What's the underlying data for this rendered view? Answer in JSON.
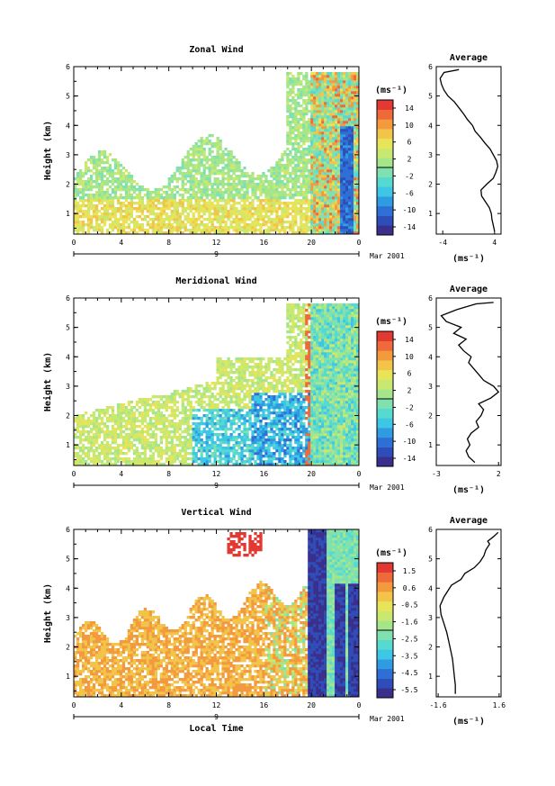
{
  "shared": {
    "x_ticks": [
      "0",
      "4",
      "8",
      "12",
      "16",
      "20",
      "0"
    ],
    "day_label": "9",
    "month_label": "Mar 2001",
    "ylabel": "Height (km)",
    "xlabel": "Local Time",
    "avg_xlabel": "(ms⁻¹)",
    "cbar_units": "(ms⁻¹)",
    "y_ticks": [
      "1",
      "2",
      "3",
      "4",
      "5",
      "6"
    ]
  },
  "colors": {
    "scale": [
      "#3a2f8c",
      "#2f4db8",
      "#2e6fd6",
      "#2f9be0",
      "#3ec6e6",
      "#56dad0",
      "#7fe0b0",
      "#a6e68a",
      "#c9e870",
      "#e8e45a",
      "#f2c54a",
      "#f39a3e",
      "#ef6a3a",
      "#e23a33"
    ]
  },
  "chart_data": [
    {
      "type": "heatmap",
      "title": "Zonal Wind",
      "xlabel": "",
      "ylabel": "Height (km)",
      "xlim": [
        0,
        24
      ],
      "ylim": [
        0.3,
        6
      ],
      "colorbar": {
        "ticks": [
          "14",
          "10",
          "6",
          "2",
          "-2",
          "-6",
          "-10",
          "-14"
        ],
        "range": [
          -14,
          14
        ],
        "units": "(ms⁻¹)"
      },
      "average_profile": {
        "title": "Average",
        "xlim": [
          -5,
          5
        ],
        "xticks": [
          "-4",
          "4"
        ],
        "xlabel": "(ms⁻¹)",
        "points": [
          [
            4.0,
            0.4
          ],
          [
            3.8,
            0.6
          ],
          [
            3.6,
            0.8
          ],
          [
            3.5,
            1.0
          ],
          [
            3.2,
            1.2
          ],
          [
            2.6,
            1.4
          ],
          [
            2.0,
            1.6
          ],
          [
            1.9,
            1.8
          ],
          [
            2.8,
            2.0
          ],
          [
            3.8,
            2.2
          ],
          [
            4.2,
            2.4
          ],
          [
            4.5,
            2.6
          ],
          [
            4.3,
            2.8
          ],
          [
            3.8,
            3.0
          ],
          [
            3.3,
            3.2
          ],
          [
            2.5,
            3.4
          ],
          [
            1.8,
            3.6
          ],
          [
            1.0,
            3.8
          ],
          [
            0.6,
            4.0
          ],
          [
            -0.2,
            4.2
          ],
          [
            -0.8,
            4.4
          ],
          [
            -1.5,
            4.6
          ],
          [
            -2.2,
            4.8
          ],
          [
            -3.2,
            5.0
          ],
          [
            -3.8,
            5.2
          ],
          [
            -4.2,
            5.4
          ],
          [
            -4.4,
            5.6
          ],
          [
            -3.8,
            5.8
          ],
          [
            -1.5,
            5.9
          ]
        ]
      }
    },
    {
      "type": "heatmap",
      "title": "Meridional Wind",
      "xlabel": "",
      "ylabel": "Height (km)",
      "xlim": [
        0,
        24
      ],
      "ylim": [
        0.3,
        6
      ],
      "colorbar": {
        "ticks": [
          "14",
          "10",
          "6",
          "2",
          "-2",
          "-6",
          "-10",
          "-14"
        ],
        "range": [
          -14,
          14
        ],
        "units": "(ms⁻¹)"
      },
      "average_profile": {
        "title": "Average",
        "xlim": [
          -3,
          2.2
        ],
        "xticks": [
          "-3",
          "2"
        ],
        "xlabel": "(ms⁻¹)",
        "points": [
          [
            0.1,
            0.4
          ],
          [
            -0.4,
            0.6
          ],
          [
            -0.6,
            0.8
          ],
          [
            -0.3,
            1.0
          ],
          [
            -0.5,
            1.2
          ],
          [
            -0.2,
            1.4
          ],
          [
            0.4,
            1.6
          ],
          [
            0.2,
            1.8
          ],
          [
            0.6,
            2.0
          ],
          [
            0.8,
            2.2
          ],
          [
            0.4,
            2.4
          ],
          [
            1.4,
            2.6
          ],
          [
            2.0,
            2.8
          ],
          [
            1.6,
            3.0
          ],
          [
            0.8,
            3.2
          ],
          [
            0.4,
            3.4
          ],
          [
            0.0,
            3.6
          ],
          [
            -0.4,
            3.8
          ],
          [
            -0.2,
            4.0
          ],
          [
            -0.8,
            4.2
          ],
          [
            -1.2,
            4.4
          ],
          [
            -0.6,
            4.6
          ],
          [
            -1.6,
            4.8
          ],
          [
            -1.0,
            5.0
          ],
          [
            -2.2,
            5.2
          ],
          [
            -2.6,
            5.4
          ],
          [
            -1.4,
            5.6
          ],
          [
            0.2,
            5.8
          ],
          [
            1.6,
            5.85
          ]
        ]
      }
    },
    {
      "type": "heatmap",
      "title": "Vertical Wind",
      "xlabel": "Local Time",
      "ylabel": "Height (km)",
      "xlim": [
        0,
        24
      ],
      "ylim": [
        0.3,
        6
      ],
      "colorbar": {
        "ticks": [
          "1.5",
          "0.6",
          "-0.5",
          "-1.6",
          "-2.5",
          "-3.5",
          "-4.5",
          "-5.5"
        ],
        "range": [
          -6,
          2
        ],
        "units": "(ms⁻¹)"
      },
      "average_profile": {
        "title": "Average",
        "xlim": [
          -1.7,
          1.7
        ],
        "xticks": [
          "-1.6",
          "1.6"
        ],
        "xlabel": "(ms⁻¹)",
        "points": [
          [
            -0.7,
            0.4
          ],
          [
            -0.7,
            0.7
          ],
          [
            -0.75,
            1.0
          ],
          [
            -0.8,
            1.3
          ],
          [
            -0.85,
            1.6
          ],
          [
            -0.95,
            1.9
          ],
          [
            -1.05,
            2.2
          ],
          [
            -1.15,
            2.5
          ],
          [
            -1.3,
            2.8
          ],
          [
            -1.45,
            3.1
          ],
          [
            -1.5,
            3.4
          ],
          [
            -1.3,
            3.7
          ],
          [
            -1.1,
            3.9
          ],
          [
            -0.9,
            4.1
          ],
          [
            -0.4,
            4.3
          ],
          [
            -0.2,
            4.5
          ],
          [
            0.3,
            4.7
          ],
          [
            0.6,
            4.9
          ],
          [
            0.8,
            5.1
          ],
          [
            0.9,
            5.3
          ],
          [
            1.1,
            5.5
          ],
          [
            1.0,
            5.6
          ],
          [
            1.3,
            5.75
          ],
          [
            1.55,
            5.9
          ]
        ]
      }
    }
  ]
}
